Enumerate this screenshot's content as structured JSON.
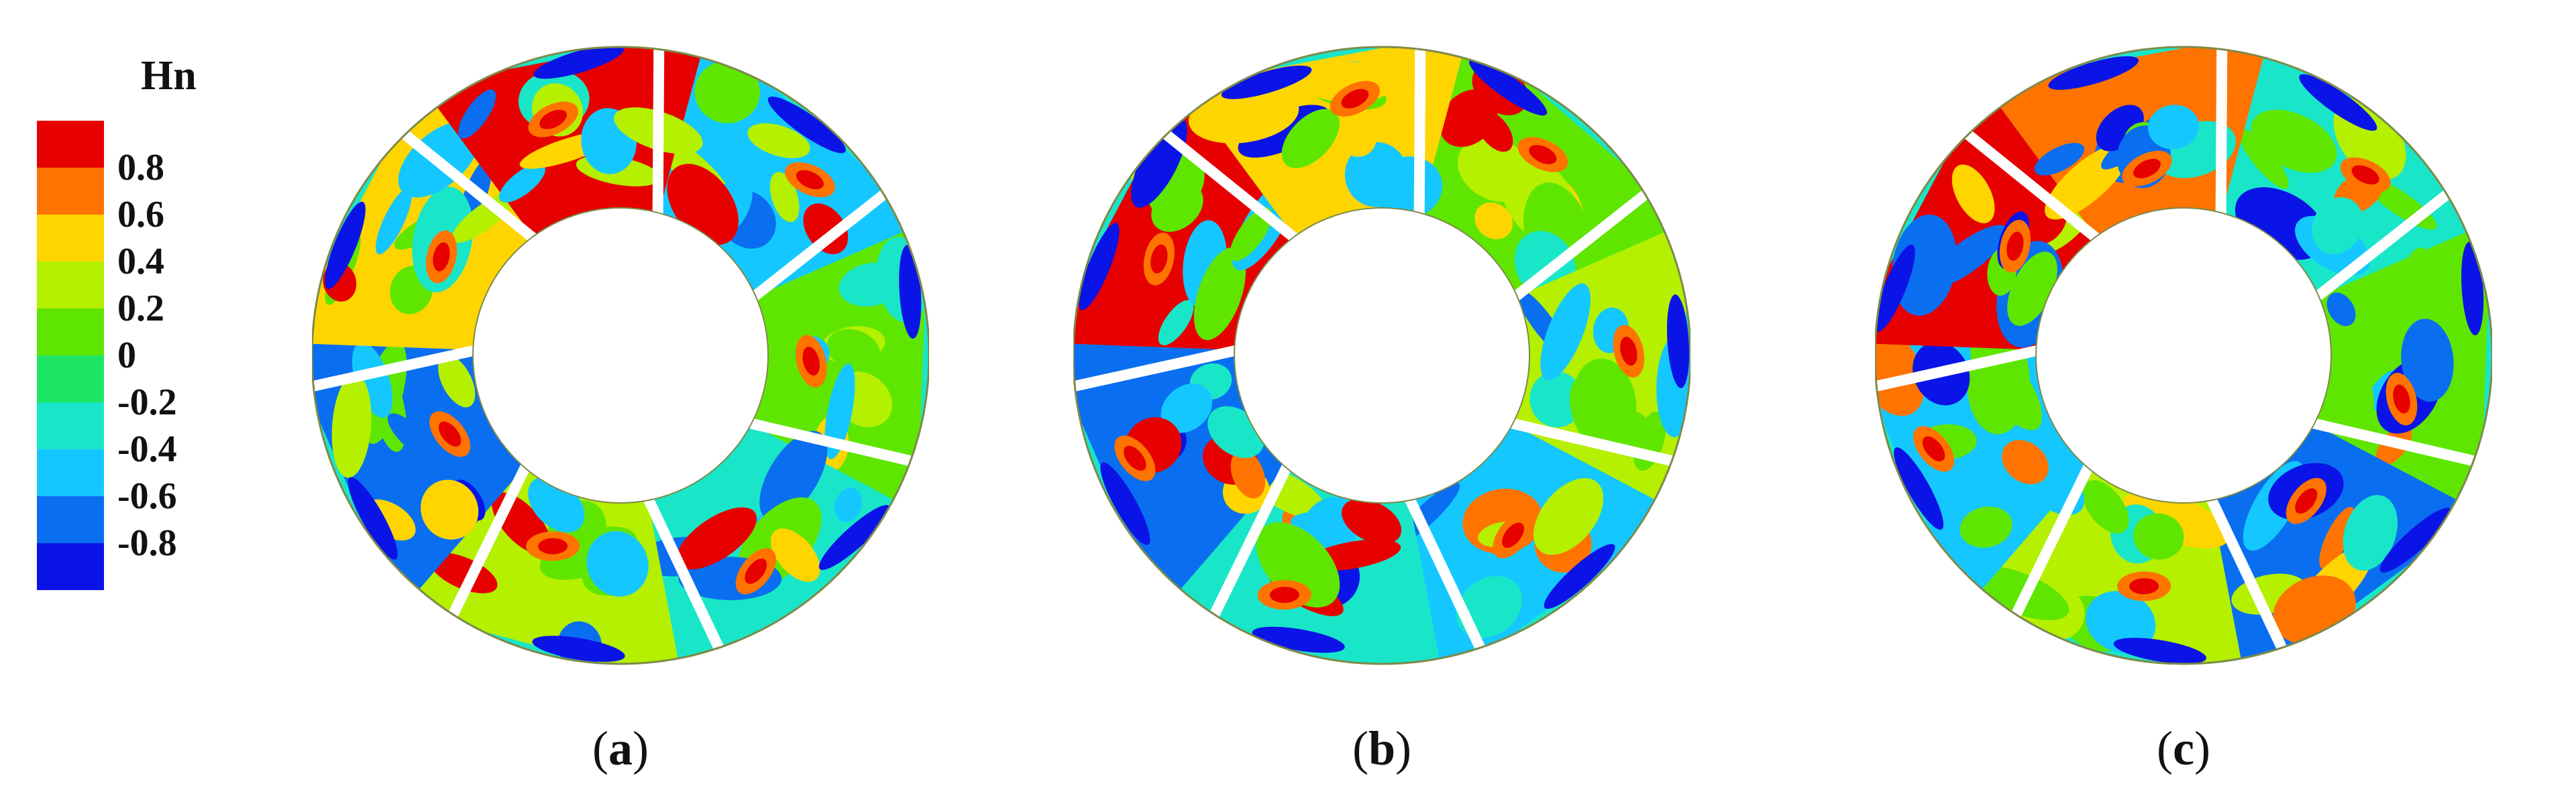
{
  "legend": {
    "title": "Hn",
    "levels": [
      {
        "label": "0.8",
        "color": "#e60000"
      },
      {
        "label": "0.6",
        "color": "#ff7300"
      },
      {
        "label": "0.4",
        "color": "#ffd500"
      },
      {
        "label": "0.2",
        "color": "#b4f000"
      },
      {
        "label": "0",
        "color": "#5fe600"
      },
      {
        "label": "-0.2",
        "color": "#1ee664"
      },
      {
        "label": "-0.4",
        "color": "#19e6c8"
      },
      {
        "label": "-0.6",
        "color": "#14c8ff"
      },
      {
        "label": "-0.8",
        "color": "#0a6ef0"
      },
      {
        "label": "",
        "color": "#0a14e6"
      }
    ]
  },
  "panels": [
    {
      "caption_open": "(",
      "caption_letter": "a",
      "caption_close": ")"
    },
    {
      "caption_open": "(",
      "caption_letter": "b",
      "caption_close": ")"
    },
    {
      "caption_open": "(",
      "caption_letter": "c",
      "caption_close": ")"
    }
  ],
  "colors": {
    "red": "#e60000",
    "orange": "#ff7300",
    "yellow": "#ffd500",
    "lime": "#b4f000",
    "green": "#5fe600",
    "aqua": "#19e6c8",
    "cyan": "#14c8ff",
    "blue": "#0a6ef0",
    "navy": "#0a14e6"
  }
}
